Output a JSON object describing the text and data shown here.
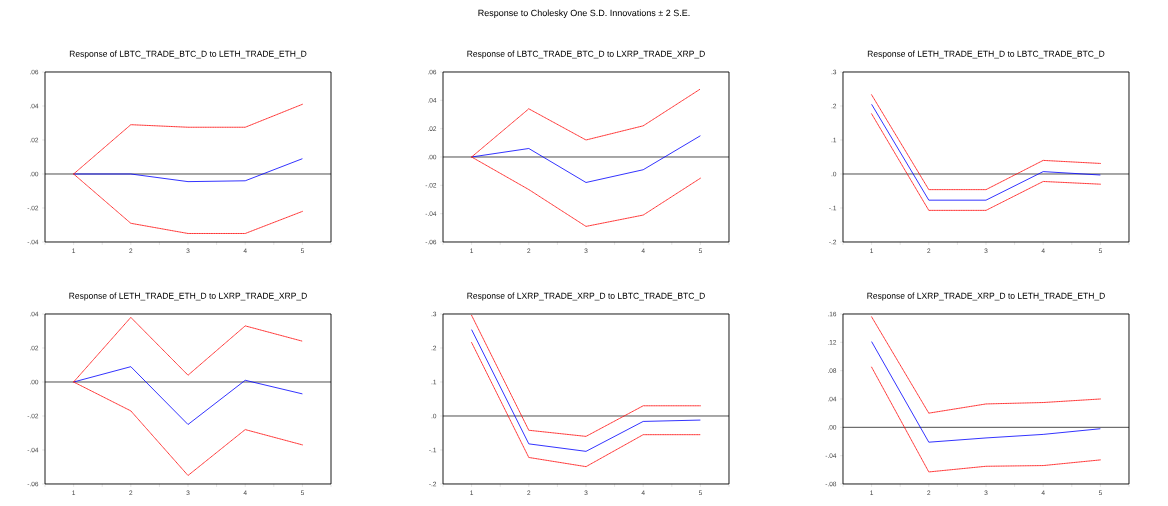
{
  "chart_data": [
    {
      "type": "other",
      "title": "Response to Cholesky One S.D. Innovations ± 2 S.E."
    },
    {
      "type": "line",
      "title": "Response of LBTC_TRADE_BTC_D to LETH_TRADE_ETH_D",
      "x": [
        1,
        2,
        3,
        4,
        5
      ],
      "xlim": [
        0.5,
        5.5
      ],
      "xticks": [
        {
          "value": 0.5,
          "label": null
        },
        1,
        {
          "value": 1.5,
          "label": null
        },
        2,
        {
          "value": 2.5,
          "label": null
        },
        3,
        {
          "value": 3.5,
          "label": null
        },
        4,
        {
          "value": 4.5,
          "label": null
        },
        5,
        {
          "value": 5.5,
          "label": null
        }
      ],
      "ylim": [
        -0.04,
        0.06
      ],
      "yticks": [
        {
          "value": -0.04,
          "label": "-.04"
        },
        {
          "value": -0.02,
          "label": "-.02"
        },
        {
          "value": 0,
          "label": ".00"
        },
        {
          "value": 0.02,
          "label": ".02"
        },
        {
          "value": 0.04,
          "label": ".04"
        },
        {
          "value": 0.06,
          "label": ".06"
        }
      ],
      "series": [
        {
          "color": "#0000ff",
          "line_style": "solid",
          "values": [
            0,
            0,
            -0.0045,
            -0.004,
            0.009
          ]
        },
        {
          "color": "#ff0000",
          "line_style": "dotted",
          "values": [
            0,
            0.029,
            0.0275,
            0.0275,
            0.041
          ]
        },
        {
          "color": "#ff0000",
          "line_style": "dotted",
          "values": [
            0,
            -0.029,
            -0.035,
            -0.035,
            -0.022
          ]
        }
      ],
      "ref_lines": [
        {
          "axis": "y",
          "value": 0,
          "color": "#000000"
        }
      ]
    },
    {
      "type": "line",
      "title": "Response of LBTC_TRADE_BTC_D to LXRP_TRADE_XRP_D",
      "x": [
        1,
        2,
        3,
        4,
        5
      ],
      "xlim": [
        0.5,
        5.5
      ],
      "xticks": [
        {
          "value": 0.5,
          "label": null
        },
        1,
        {
          "value": 1.5,
          "label": null
        },
        2,
        {
          "value": 2.5,
          "label": null
        },
        3,
        {
          "value": 3.5,
          "label": null
        },
        4,
        {
          "value": 4.5,
          "label": null
        },
        5,
        {
          "value": 5.5,
          "label": null
        }
      ],
      "ylim": [
        -0.06,
        0.06
      ],
      "yticks": [
        {
          "value": -0.06,
          "label": "-.06"
        },
        {
          "value": -0.04,
          "label": "-.04"
        },
        {
          "value": -0.02,
          "label": "-.02"
        },
        {
          "value": 0,
          "label": ".00"
        },
        {
          "value": 0.02,
          "label": ".02"
        },
        {
          "value": 0.04,
          "label": ".04"
        },
        {
          "value": 0.06,
          "label": ".06"
        }
      ],
      "series": [
        {
          "color": "#0000ff",
          "line_style": "solid",
          "values": [
            0,
            0.006,
            -0.018,
            -0.009,
            0.015
          ]
        },
        {
          "color": "#ff0000",
          "line_style": "dotted",
          "values": [
            0,
            0.034,
            0.012,
            0.022,
            0.048
          ]
        },
        {
          "color": "#ff0000",
          "line_style": "dotted",
          "values": [
            0,
            -0.023,
            -0.049,
            -0.041,
            -0.015
          ]
        }
      ],
      "ref_lines": [
        {
          "axis": "y",
          "value": 0,
          "color": "#000000"
        }
      ]
    },
    {
      "type": "line",
      "title": "Response of LETH_TRADE_ETH_D to LBTC_TRADE_BTC_D",
      "x": [
        1,
        2,
        3,
        4,
        5
      ],
      "xlim": [
        0.5,
        5.5
      ],
      "xticks": [
        {
          "value": 0.5,
          "label": null
        },
        1,
        {
          "value": 1.5,
          "label": null
        },
        2,
        {
          "value": 2.5,
          "label": null
        },
        3,
        {
          "value": 3.5,
          "label": null
        },
        4,
        {
          "value": 4.5,
          "label": null
        },
        5,
        {
          "value": 5.5,
          "label": null
        }
      ],
      "ylim": [
        -0.2,
        0.3
      ],
      "yticks": [
        {
          "value": -0.2,
          "label": "-.2"
        },
        {
          "value": -0.1,
          "label": "-.1"
        },
        {
          "value": 0,
          "label": ".0"
        },
        {
          "value": 0.1,
          "label": ".1"
        },
        {
          "value": 0.2,
          "label": ".2"
        },
        {
          "value": 0.3,
          "label": ".3"
        }
      ],
      "series": [
        {
          "color": "#0000ff",
          "line_style": "solid",
          "values": [
            0.205,
            -0.077,
            -0.077,
            0.007,
            -0.003
          ]
        },
        {
          "color": "#ff0000",
          "line_style": "dotted",
          "values": [
            0.233,
            -0.046,
            -0.046,
            0.04,
            0.031
          ]
        },
        {
          "color": "#ff0000",
          "line_style": "dotted",
          "values": [
            0.177,
            -0.107,
            -0.107,
            -0.022,
            -0.03
          ]
        }
      ],
      "ref_lines": [
        {
          "axis": "y",
          "value": 0,
          "color": "#000000"
        }
      ]
    },
    {
      "type": "line",
      "title": "Response of LETH_TRADE_ETH_D to LXRP_TRADE_XRP_D",
      "x": [
        1,
        2,
        3,
        4,
        5
      ],
      "xlim": [
        0.5,
        5.5
      ],
      "xticks": [
        {
          "value": 0.5,
          "label": null
        },
        1,
        {
          "value": 1.5,
          "label": null
        },
        2,
        {
          "value": 2.5,
          "label": null
        },
        3,
        {
          "value": 3.5,
          "label": null
        },
        4,
        {
          "value": 4.5,
          "label": null
        },
        5,
        {
          "value": 5.5,
          "label": null
        }
      ],
      "ylim": [
        -0.06,
        0.04
      ],
      "yticks": [
        {
          "value": -0.06,
          "label": "-.06"
        },
        {
          "value": -0.04,
          "label": "-.04"
        },
        {
          "value": -0.02,
          "label": "-.02"
        },
        {
          "value": 0,
          "label": ".00"
        },
        {
          "value": 0.02,
          "label": ".02"
        },
        {
          "value": 0.04,
          "label": ".04"
        }
      ],
      "series": [
        {
          "color": "#0000ff",
          "line_style": "solid",
          "values": [
            0,
            0.009,
            -0.025,
            0.001,
            -0.007
          ]
        },
        {
          "color": "#ff0000",
          "line_style": "dotted",
          "values": [
            0,
            0.038,
            0.004,
            0.033,
            0.024
          ]
        },
        {
          "color": "#ff0000",
          "line_style": "dotted",
          "values": [
            0,
            -0.017,
            -0.055,
            -0.028,
            -0.037
          ]
        }
      ],
      "ref_lines": [
        {
          "axis": "y",
          "value": 0,
          "color": "#000000"
        }
      ]
    },
    {
      "type": "line",
      "title": "Response of LXRP_TRADE_XRP_D to LBTC_TRADE_BTC_D",
      "x": [
        1,
        2,
        3,
        4,
        5
      ],
      "xlim": [
        0.5,
        5.5
      ],
      "xticks": [
        {
          "value": 0.5,
          "label": null
        },
        1,
        {
          "value": 1.5,
          "label": null
        },
        2,
        {
          "value": 2.5,
          "label": null
        },
        3,
        {
          "value": 3.5,
          "label": null
        },
        4,
        {
          "value": 4.5,
          "label": null
        },
        5,
        {
          "value": 5.5,
          "label": null
        }
      ],
      "ylim": [
        -0.2,
        0.3
      ],
      "yticks": [
        {
          "value": -0.2,
          "label": "-.2"
        },
        {
          "value": -0.1,
          "label": "-.1"
        },
        {
          "value": 0,
          "label": ".0"
        },
        {
          "value": 0.1,
          "label": ".1"
        },
        {
          "value": 0.2,
          "label": ".2"
        },
        {
          "value": 0.3,
          "label": ".3"
        }
      ],
      "series": [
        {
          "color": "#0000ff",
          "line_style": "solid",
          "values": [
            0.254,
            -0.082,
            -0.104,
            -0.016,
            -0.012
          ]
        },
        {
          "color": "#ff0000",
          "line_style": "dotted",
          "values": [
            0.296,
            -0.042,
            -0.06,
            0.03,
            0.03
          ]
        },
        {
          "color": "#ff0000",
          "line_style": "dotted",
          "values": [
            0.216,
            -0.122,
            -0.149,
            -0.055,
            -0.055
          ]
        }
      ],
      "ref_lines": [
        {
          "axis": "y",
          "value": 0,
          "color": "#000000"
        }
      ]
    },
    {
      "type": "line",
      "title": "Response of LXRP_TRADE_XRP_D to LETH_TRADE_ETH_D",
      "x": [
        1,
        2,
        3,
        4,
        5
      ],
      "xlim": [
        0.5,
        5.5
      ],
      "xticks": [
        {
          "value": 0.5,
          "label": null
        },
        1,
        {
          "value": 1.5,
          "label": null
        },
        2,
        {
          "value": 2.5,
          "label": null
        },
        3,
        {
          "value": 3.5,
          "label": null
        },
        4,
        {
          "value": 4.5,
          "label": null
        },
        5,
        {
          "value": 5.5,
          "label": null
        }
      ],
      "ylim": [
        -0.08,
        0.16
      ],
      "yticks": [
        {
          "value": -0.08,
          "label": "-.08"
        },
        {
          "value": -0.04,
          "label": "-.04"
        },
        {
          "value": 0,
          "label": ".00"
        },
        {
          "value": 0.04,
          "label": ".04"
        },
        {
          "value": 0.08,
          "label": ".08"
        },
        {
          "value": 0.12,
          "label": ".12"
        },
        {
          "value": 0.16,
          "label": ".16"
        }
      ],
      "series": [
        {
          "color": "#0000ff",
          "line_style": "solid",
          "values": [
            0.121,
            -0.021,
            -0.015,
            -0.01,
            -0.002
          ]
        },
        {
          "color": "#ff0000",
          "line_style": "dotted",
          "values": [
            0.156,
            0.02,
            0.033,
            0.035,
            0.04
          ]
        },
        {
          "color": "#ff0000",
          "line_style": "dotted",
          "values": [
            0.085,
            -0.063,
            -0.055,
            -0.054,
            -0.046
          ]
        }
      ],
      "ref_lines": [
        {
          "axis": "y",
          "value": 0,
          "color": "#000000"
        }
      ]
    }
  ]
}
